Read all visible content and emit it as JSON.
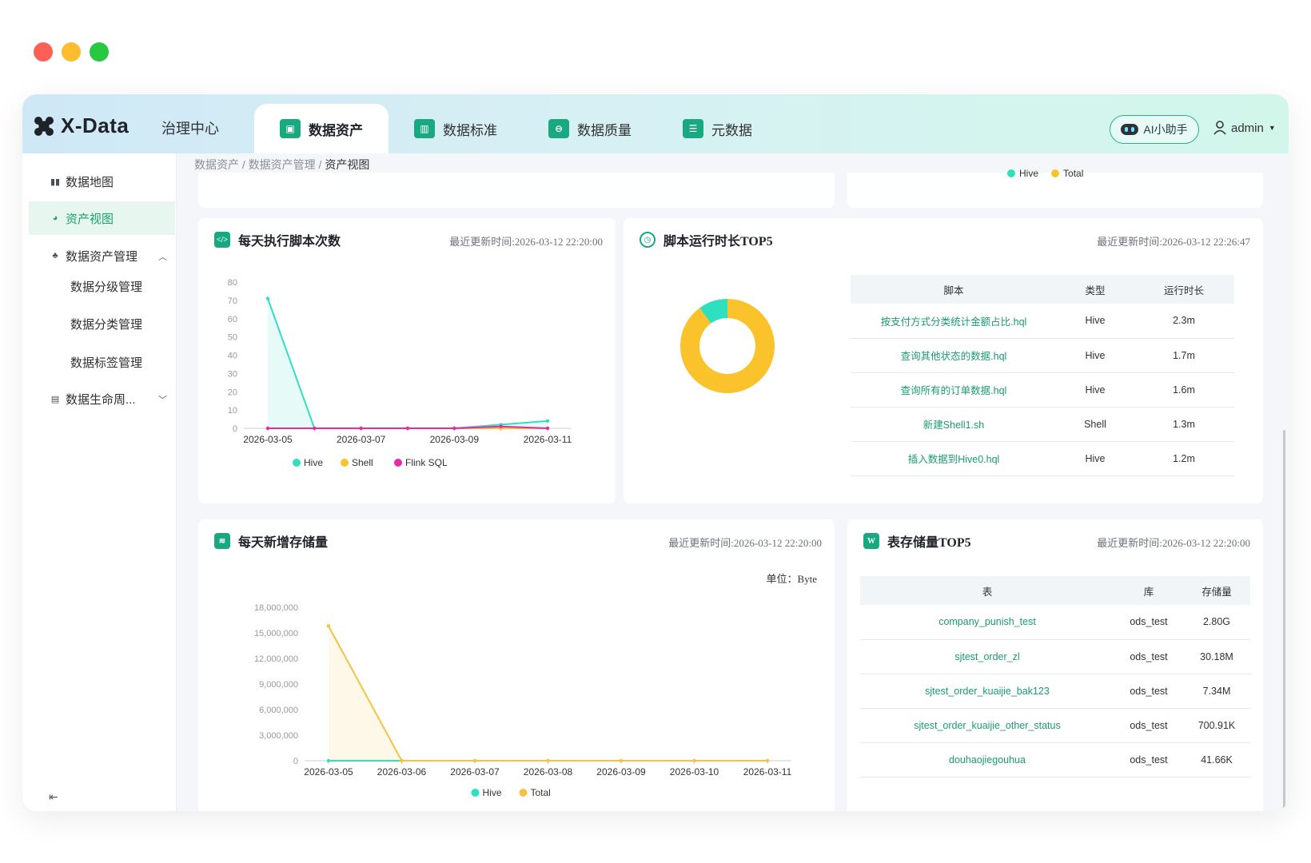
{
  "window": {
    "controls": [
      "close",
      "minimize",
      "maximize"
    ]
  },
  "header": {
    "logo": "X-Data",
    "governance": "治理中心",
    "tabs": [
      {
        "label": "数据资产",
        "icon": "wallet-icon",
        "active": true
      },
      {
        "label": "数据标准",
        "icon": "bar-chart-icon",
        "active": false
      },
      {
        "label": "数据质量",
        "icon": "monitor-icon",
        "active": false
      },
      {
        "label": "元数据",
        "icon": "document-icon",
        "active": false
      }
    ],
    "ai_button": "AI小助手",
    "user": "admin"
  },
  "sidebar": {
    "items": [
      {
        "label": "数据地图"
      },
      {
        "label": "资产视图",
        "active": true
      },
      {
        "label": "数据资产管理"
      },
      {
        "label": "数据分级管理"
      },
      {
        "label": "数据分类管理"
      },
      {
        "label": "数据标签管理"
      },
      {
        "label": "数据生命周..."
      }
    ]
  },
  "breadcrumb": {
    "part1": "数据资产",
    "sep": " / ",
    "part2": "数据资产管理",
    "current": "资产视图"
  },
  "top_remnant": {
    "legend": [
      "Hive",
      "Total"
    ]
  },
  "cards": {
    "scripts_daily": {
      "title": "每天执行脚本次数",
      "updated": "最近更新时间:2026-03-12 22:20:00"
    },
    "script_runtime_top5": {
      "title": "脚本运行时长TOP5",
      "updated": "最近更新时间:2026-03-12 22:26:47",
      "columns": [
        "脚本",
        "类型",
        "运行时长"
      ],
      "rows": [
        {
          "script": "按支付方式分类统计金额占比.hql",
          "type": "Hive",
          "duration": "2.3m"
        },
        {
          "script": "查询其他状态的数据.hql",
          "type": "Hive",
          "duration": "1.7m"
        },
        {
          "script": "查询所有的订单数据.hql",
          "type": "Hive",
          "duration": "1.6m"
        },
        {
          "script": "新建Shell1.sh",
          "type": "Shell",
          "duration": "1.3m"
        },
        {
          "script": "插入数据到Hive0.hql",
          "type": "Hive",
          "duration": "1.2m"
        }
      ]
    },
    "storage_daily": {
      "title": "每天新增存储量",
      "updated": "最近更新时间:2026-03-12 22:20:00",
      "unit": "单位：Byte"
    },
    "table_storage_top5": {
      "title": "表存储量TOP5",
      "updated": "最近更新时间:2026-03-12 22:20:00",
      "columns": [
        "表",
        "库",
        "存储量"
      ],
      "rows": [
        {
          "table": "company_punish_test",
          "db": "ods_test",
          "size": "2.80G"
        },
        {
          "table": "sjtest_order_zl",
          "db": "ods_test",
          "size": "30.18M"
        },
        {
          "table": "sjtest_order_kuaijie_bak123",
          "db": "ods_test",
          "size": "7.34M"
        },
        {
          "table": "sjtest_order_kuaijie_other_status",
          "db": "ods_test",
          "size": "700.91K"
        },
        {
          "table": "douhaojiegouhua",
          "db": "ods_test",
          "size": "41.66K"
        }
      ]
    }
  },
  "chart_data": [
    {
      "type": "line",
      "x": [
        "2026-03-05",
        "2026-03-06",
        "2026-03-07",
        "2026-03-08",
        "2026-03-09",
        "2026-03-10",
        "2026-03-11"
      ],
      "x_tick_labels": [
        "2026-03-05",
        "2026-03-07",
        "2026-03-09",
        "2026-03-11"
      ],
      "y_ticks": [
        0,
        10,
        20,
        30,
        40,
        50,
        60,
        70,
        80
      ],
      "ylim": [
        0,
        80
      ],
      "series": [
        {
          "name": "Hive",
          "color": "#2ee0c0",
          "values": [
            71,
            0,
            0,
            0,
            0,
            2,
            4
          ],
          "area": true
        },
        {
          "name": "Shell",
          "color": "#fac22b",
          "values": [
            0,
            0,
            0,
            0,
            0,
            0,
            0
          ]
        },
        {
          "name": "Flink SQL",
          "color": "#e82aa6",
          "values": [
            0,
            0,
            0,
            0,
            0,
            1,
            0
          ]
        }
      ],
      "legend": "bottom"
    },
    {
      "type": "pie",
      "donut": true,
      "slices": [
        {
          "name": "Hive",
          "value": 90,
          "color": "#fac22b"
        },
        {
          "name": "Shell",
          "value": 10,
          "color": "#2ee0c0"
        }
      ]
    },
    {
      "type": "area",
      "x": [
        "2026-03-05",
        "2026-03-06",
        "2026-03-07",
        "2026-03-08",
        "2026-03-09",
        "2026-03-10",
        "2026-03-11"
      ],
      "y_ticks": [
        "0",
        "3,000,000",
        "6,000,000",
        "9,000,000",
        "12,000,000",
        "15,000,000",
        "18,000,000"
      ],
      "ylim": [
        0,
        18000000
      ],
      "series": [
        {
          "name": "Hive",
          "color": "#2ee0c0",
          "values": [
            0,
            0,
            0,
            0,
            0,
            0,
            0
          ]
        },
        {
          "name": "Total",
          "color": "#f5c242",
          "values": [
            15800000,
            0,
            0,
            0,
            0,
            0,
            0
          ],
          "area": true
        }
      ],
      "legend": "bottom"
    }
  ]
}
